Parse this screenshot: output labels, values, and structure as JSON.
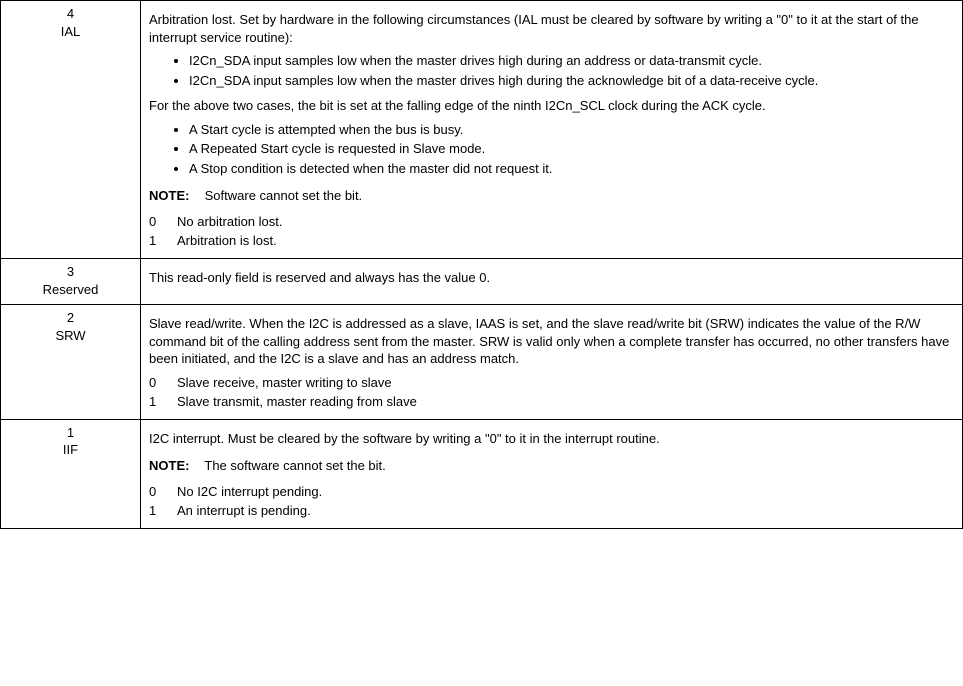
{
  "rows": [
    {
      "bit": "4",
      "name": "IAL",
      "intro": "Arbitration lost. Set by hardware in the following circumstances (IAL must be cleared by software by writing a \"0\" to it at the start of the interrupt service routine):",
      "bullets1": [
        "I2Cn_SDA input samples low when the master drives high during an address or data-transmit cycle.",
        "I2Cn_SDA input samples low when the master drives high during the acknowledge bit of a data-receive cycle."
      ],
      "mid": "For the above two cases, the bit is set at the falling edge of the ninth I2Cn_SCL clock during the ACK cycle.",
      "bullets2": [
        "A Start cycle is attempted when the bus is busy.",
        "A Repeated Start cycle is requested in Slave mode.",
        "A Stop condition is detected when the master did not request it."
      ],
      "note_label": "NOTE:",
      "note_text": "Software cannot set the bit.",
      "values": [
        {
          "k": "0",
          "d": "No arbitration lost."
        },
        {
          "k": "1",
          "d": "Arbitration is lost."
        }
      ]
    },
    {
      "bit": "3",
      "name": "Reserved",
      "intro": "This read-only field is reserved and always has the value 0."
    },
    {
      "bit": "2",
      "name": "SRW",
      "intro": "Slave read/write. When the I2C is addressed as a slave, IAAS is set, and the slave read/write bit (SRW) indicates the value of the R/W command bit of the calling address sent from the master. SRW is valid only when a complete transfer has occurred, no other transfers have been initiated, and the I2C is a slave and has an address match.",
      "values": [
        {
          "k": "0",
          "d": "Slave receive, master writing to slave"
        },
        {
          "k": "1",
          "d": "Slave transmit, master reading from slave"
        }
      ]
    },
    {
      "bit": "1",
      "name": "IIF",
      "intro": "I2C interrupt. Must be cleared by the software by writing a \"0\" to it in the interrupt routine.",
      "note_label": "NOTE:",
      "note_text": "The software cannot set the bit.",
      "values": [
        {
          "k": "0",
          "d": "No I2C interrupt pending."
        },
        {
          "k": "1",
          "d": "An interrupt is pending."
        }
      ]
    }
  ]
}
